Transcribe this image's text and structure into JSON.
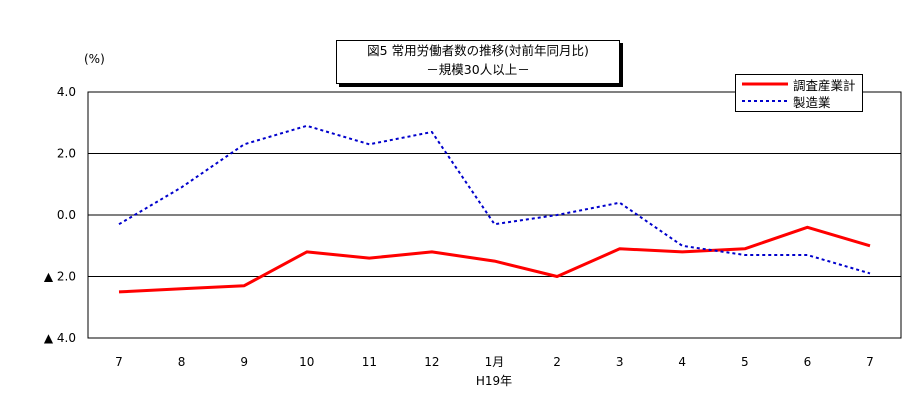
{
  "chart_data": {
    "type": "line",
    "title": "図5 常用労働者数の推移(対前年同月比)",
    "subtitle": "－規模30人以上－",
    "ylabel": "(%)",
    "xlabel": "H19年",
    "ylim": [
      -4.0,
      4.0
    ],
    "yticks": [
      4.0,
      2.0,
      0.0,
      -2.0,
      -4.0
    ],
    "ytick_labels": [
      "4.0",
      "2.0",
      "0.0",
      "▲ 2.0",
      "▲ 4.0"
    ],
    "categories": [
      "7",
      "8",
      "9",
      "10",
      "11",
      "12",
      "1月",
      "2",
      "3",
      "4",
      "5",
      "6",
      "7"
    ],
    "grid": true,
    "legend_position": "top-right",
    "series": [
      {
        "name": "調査産業計",
        "color": "#ff0000",
        "style": "solid",
        "values": [
          -2.5,
          -2.4,
          -2.3,
          -1.2,
          -1.4,
          -1.2,
          -1.5,
          -2.0,
          -1.1,
          -1.2,
          -1.1,
          -0.4,
          -1.0
        ]
      },
      {
        "name": "製造業",
        "color": "#0000cc",
        "style": "dotted",
        "values": [
          -0.3,
          0.9,
          2.3,
          2.9,
          2.3,
          2.7,
          -0.3,
          0.0,
          0.4,
          -1.0,
          -1.3,
          -1.3,
          -1.9
        ]
      }
    ]
  }
}
